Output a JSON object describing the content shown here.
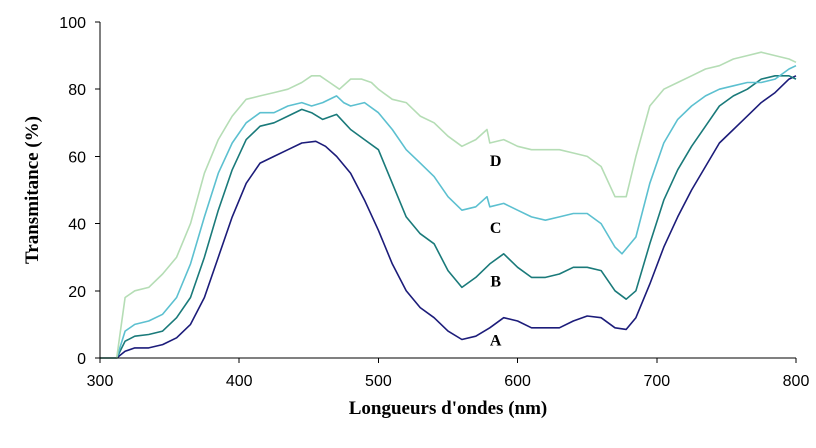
{
  "chart_data": {
    "type": "line",
    "title": "",
    "xlabel": "Longueurs d'ondes (nm)",
    "ylabel": "Transmitance (%)",
    "xlim": [
      300,
      800
    ],
    "ylim": [
      0,
      100
    ],
    "xticks": [
      300,
      400,
      500,
      600,
      700,
      800
    ],
    "yticks": [
      0,
      20,
      40,
      60,
      80,
      100
    ],
    "grid": false,
    "legend": "none",
    "series": [
      {
        "name": "A",
        "color": "#1c1c7a",
        "label_at": [
          590,
          5.5
        ],
        "x": [
          300,
          312,
          318,
          325,
          335,
          345,
          355,
          365,
          375,
          385,
          395,
          405,
          415,
          425,
          435,
          445,
          455,
          462,
          470,
          480,
          490,
          500,
          510,
          520,
          530,
          540,
          550,
          560,
          570,
          580,
          590,
          600,
          610,
          620,
          630,
          640,
          650,
          660,
          670,
          678,
          685,
          695,
          705,
          715,
          725,
          735,
          745,
          755,
          765,
          775,
          785,
          795,
          800
        ],
        "y": [
          0,
          0,
          2,
          3,
          3,
          4,
          6,
          10,
          18,
          30,
          42,
          52,
          58,
          60,
          62,
          64,
          64.5,
          63,
          60,
          55,
          47,
          38,
          28,
          20,
          15,
          12,
          8,
          5.5,
          6.5,
          9,
          12,
          11,
          9,
          9,
          9,
          11,
          12.5,
          12,
          9,
          8.5,
          12,
          22,
          33,
          42,
          50,
          57,
          64,
          68,
          72,
          76,
          79,
          83,
          84
        ]
      },
      {
        "name": "B",
        "color": "#1a7a7a",
        "label_at": [
          590,
          23
        ],
        "x": [
          300,
          312,
          318,
          325,
          335,
          345,
          355,
          365,
          375,
          385,
          395,
          405,
          415,
          425,
          435,
          445,
          452,
          460,
          470,
          480,
          490,
          500,
          510,
          520,
          530,
          540,
          550,
          560,
          570,
          580,
          590,
          600,
          610,
          620,
          630,
          640,
          650,
          660,
          670,
          678,
          685,
          695,
          705,
          715,
          725,
          735,
          745,
          755,
          765,
          775,
          785,
          795,
          800
        ],
        "y": [
          0,
          0,
          5,
          6.5,
          7,
          8,
          12,
          18,
          30,
          44,
          56,
          65,
          69,
          70,
          72,
          74,
          73,
          71,
          72.5,
          68,
          65,
          62,
          52,
          42,
          37,
          34,
          26,
          21,
          24,
          28,
          31,
          27,
          24,
          24,
          25,
          27,
          27,
          26,
          20,
          17.5,
          20,
          34,
          47,
          56,
          63,
          69,
          75,
          78,
          80,
          83,
          84,
          84,
          83
        ]
      },
      {
        "name": "C",
        "color": "#5cc0d0",
        "label_at": [
          590,
          39
        ],
        "x": [
          300,
          312,
          318,
          325,
          335,
          345,
          355,
          365,
          375,
          385,
          395,
          405,
          415,
          425,
          435,
          445,
          452,
          460,
          470,
          475,
          480,
          490,
          500,
          510,
          520,
          530,
          540,
          550,
          560,
          570,
          578,
          580,
          590,
          600,
          610,
          620,
          630,
          640,
          650,
          660,
          670,
          675,
          685,
          695,
          705,
          715,
          725,
          735,
          745,
          755,
          765,
          775,
          785,
          795,
          800
        ],
        "y": [
          0,
          0,
          8,
          10,
          11,
          13,
          18,
          28,
          42,
          55,
          64,
          70,
          73,
          73,
          75,
          76,
          75,
          76,
          78,
          76,
          75,
          76,
          73,
          68,
          62,
          58,
          54,
          48,
          44,
          45,
          48,
          45,
          46,
          44,
          42,
          41,
          42,
          43,
          43,
          40,
          33,
          31,
          36,
          52,
          64,
          71,
          75,
          78,
          80,
          81,
          82,
          82,
          83,
          86,
          87
        ]
      },
      {
        "name": "D",
        "color": "#b5ddb5",
        "label_at": [
          590,
          59
        ],
        "x": [
          300,
          312,
          318,
          325,
          335,
          345,
          355,
          365,
          375,
          385,
          395,
          405,
          415,
          425,
          435,
          445,
          452,
          458,
          465,
          472,
          480,
          488,
          495,
          500,
          510,
          520,
          530,
          540,
          550,
          560,
          570,
          578,
          580,
          590,
          600,
          610,
          620,
          630,
          640,
          650,
          660,
          670,
          678,
          685,
          695,
          705,
          715,
          725,
          735,
          745,
          755,
          765,
          775,
          785,
          795,
          800
        ],
        "y": [
          0,
          0,
          18,
          20,
          21,
          25,
          30,
          40,
          55,
          65,
          72,
          77,
          78,
          79,
          80,
          82,
          84,
          84,
          82,
          80,
          83,
          83,
          82,
          80,
          77,
          76,
          72,
          70,
          66,
          63,
          65,
          68,
          64,
          65,
          63,
          62,
          62,
          62,
          61,
          60,
          57,
          48,
          48,
          60,
          75,
          80,
          82,
          84,
          86,
          87,
          89,
          90,
          91,
          90,
          89,
          88
        ]
      }
    ]
  }
}
